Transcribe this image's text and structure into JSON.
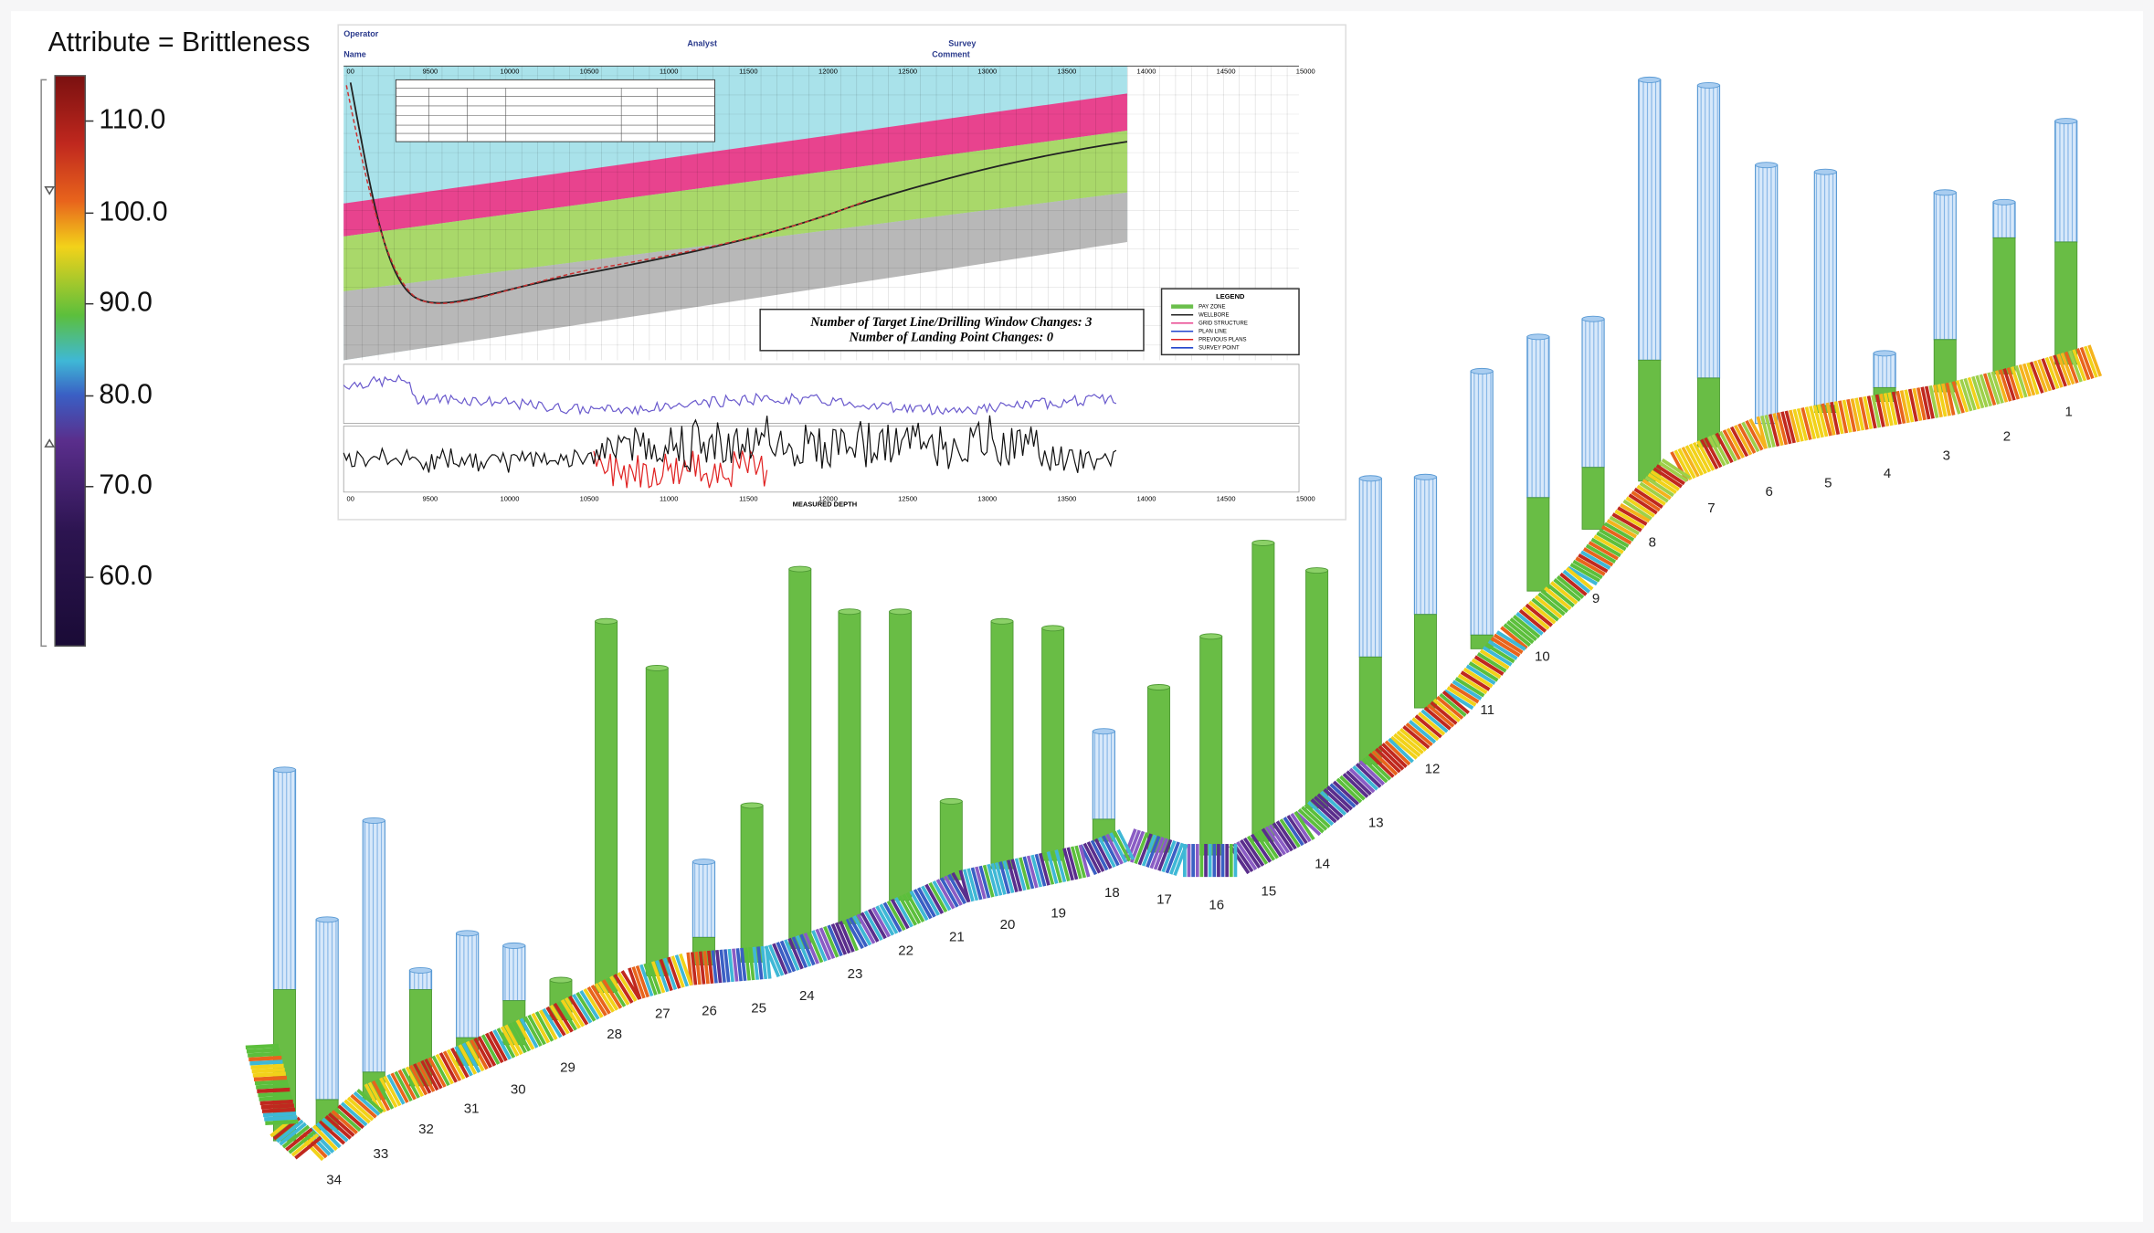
{
  "colorbar": {
    "title": "Attribute = Brittleness",
    "ticks": [
      "110.0",
      "100.0",
      "90.0",
      "80.0",
      "70.0",
      "60.0"
    ]
  },
  "inset": {
    "depth_ticks": [
      "00",
      "9500",
      "10000",
      "10500",
      "11000",
      "11500",
      "12000",
      "12500",
      "13000",
      "13500",
      "14000",
      "14500",
      "15000"
    ],
    "axis_title": "MEASURED DEPTH",
    "header": [
      "Operator",
      "Analyst",
      "Survey",
      "Name",
      "Comment"
    ],
    "note": [
      "Number of Target Line/Drilling Window Changes: 3",
      "Number of Landing Point Changes: 0"
    ],
    "legend": {
      "title": "LEGEND",
      "items": [
        "PAY ZONE",
        "WELLBORE",
        "GRID STRUCTURE",
        "PLAN LINE",
        "PREVIOUS PLANS",
        "SURVEY POINT"
      ]
    }
  },
  "stages": [
    "1",
    "2",
    "3",
    "4",
    "5",
    "6",
    "7",
    "8",
    "9",
    "10",
    "11",
    "12",
    "13",
    "14",
    "15",
    "16",
    "17",
    "18",
    "19",
    "20",
    "21",
    "22",
    "23",
    "24",
    "25",
    "26",
    "27",
    "28",
    "29",
    "30",
    "31",
    "32",
    "33",
    "34"
  ]
}
